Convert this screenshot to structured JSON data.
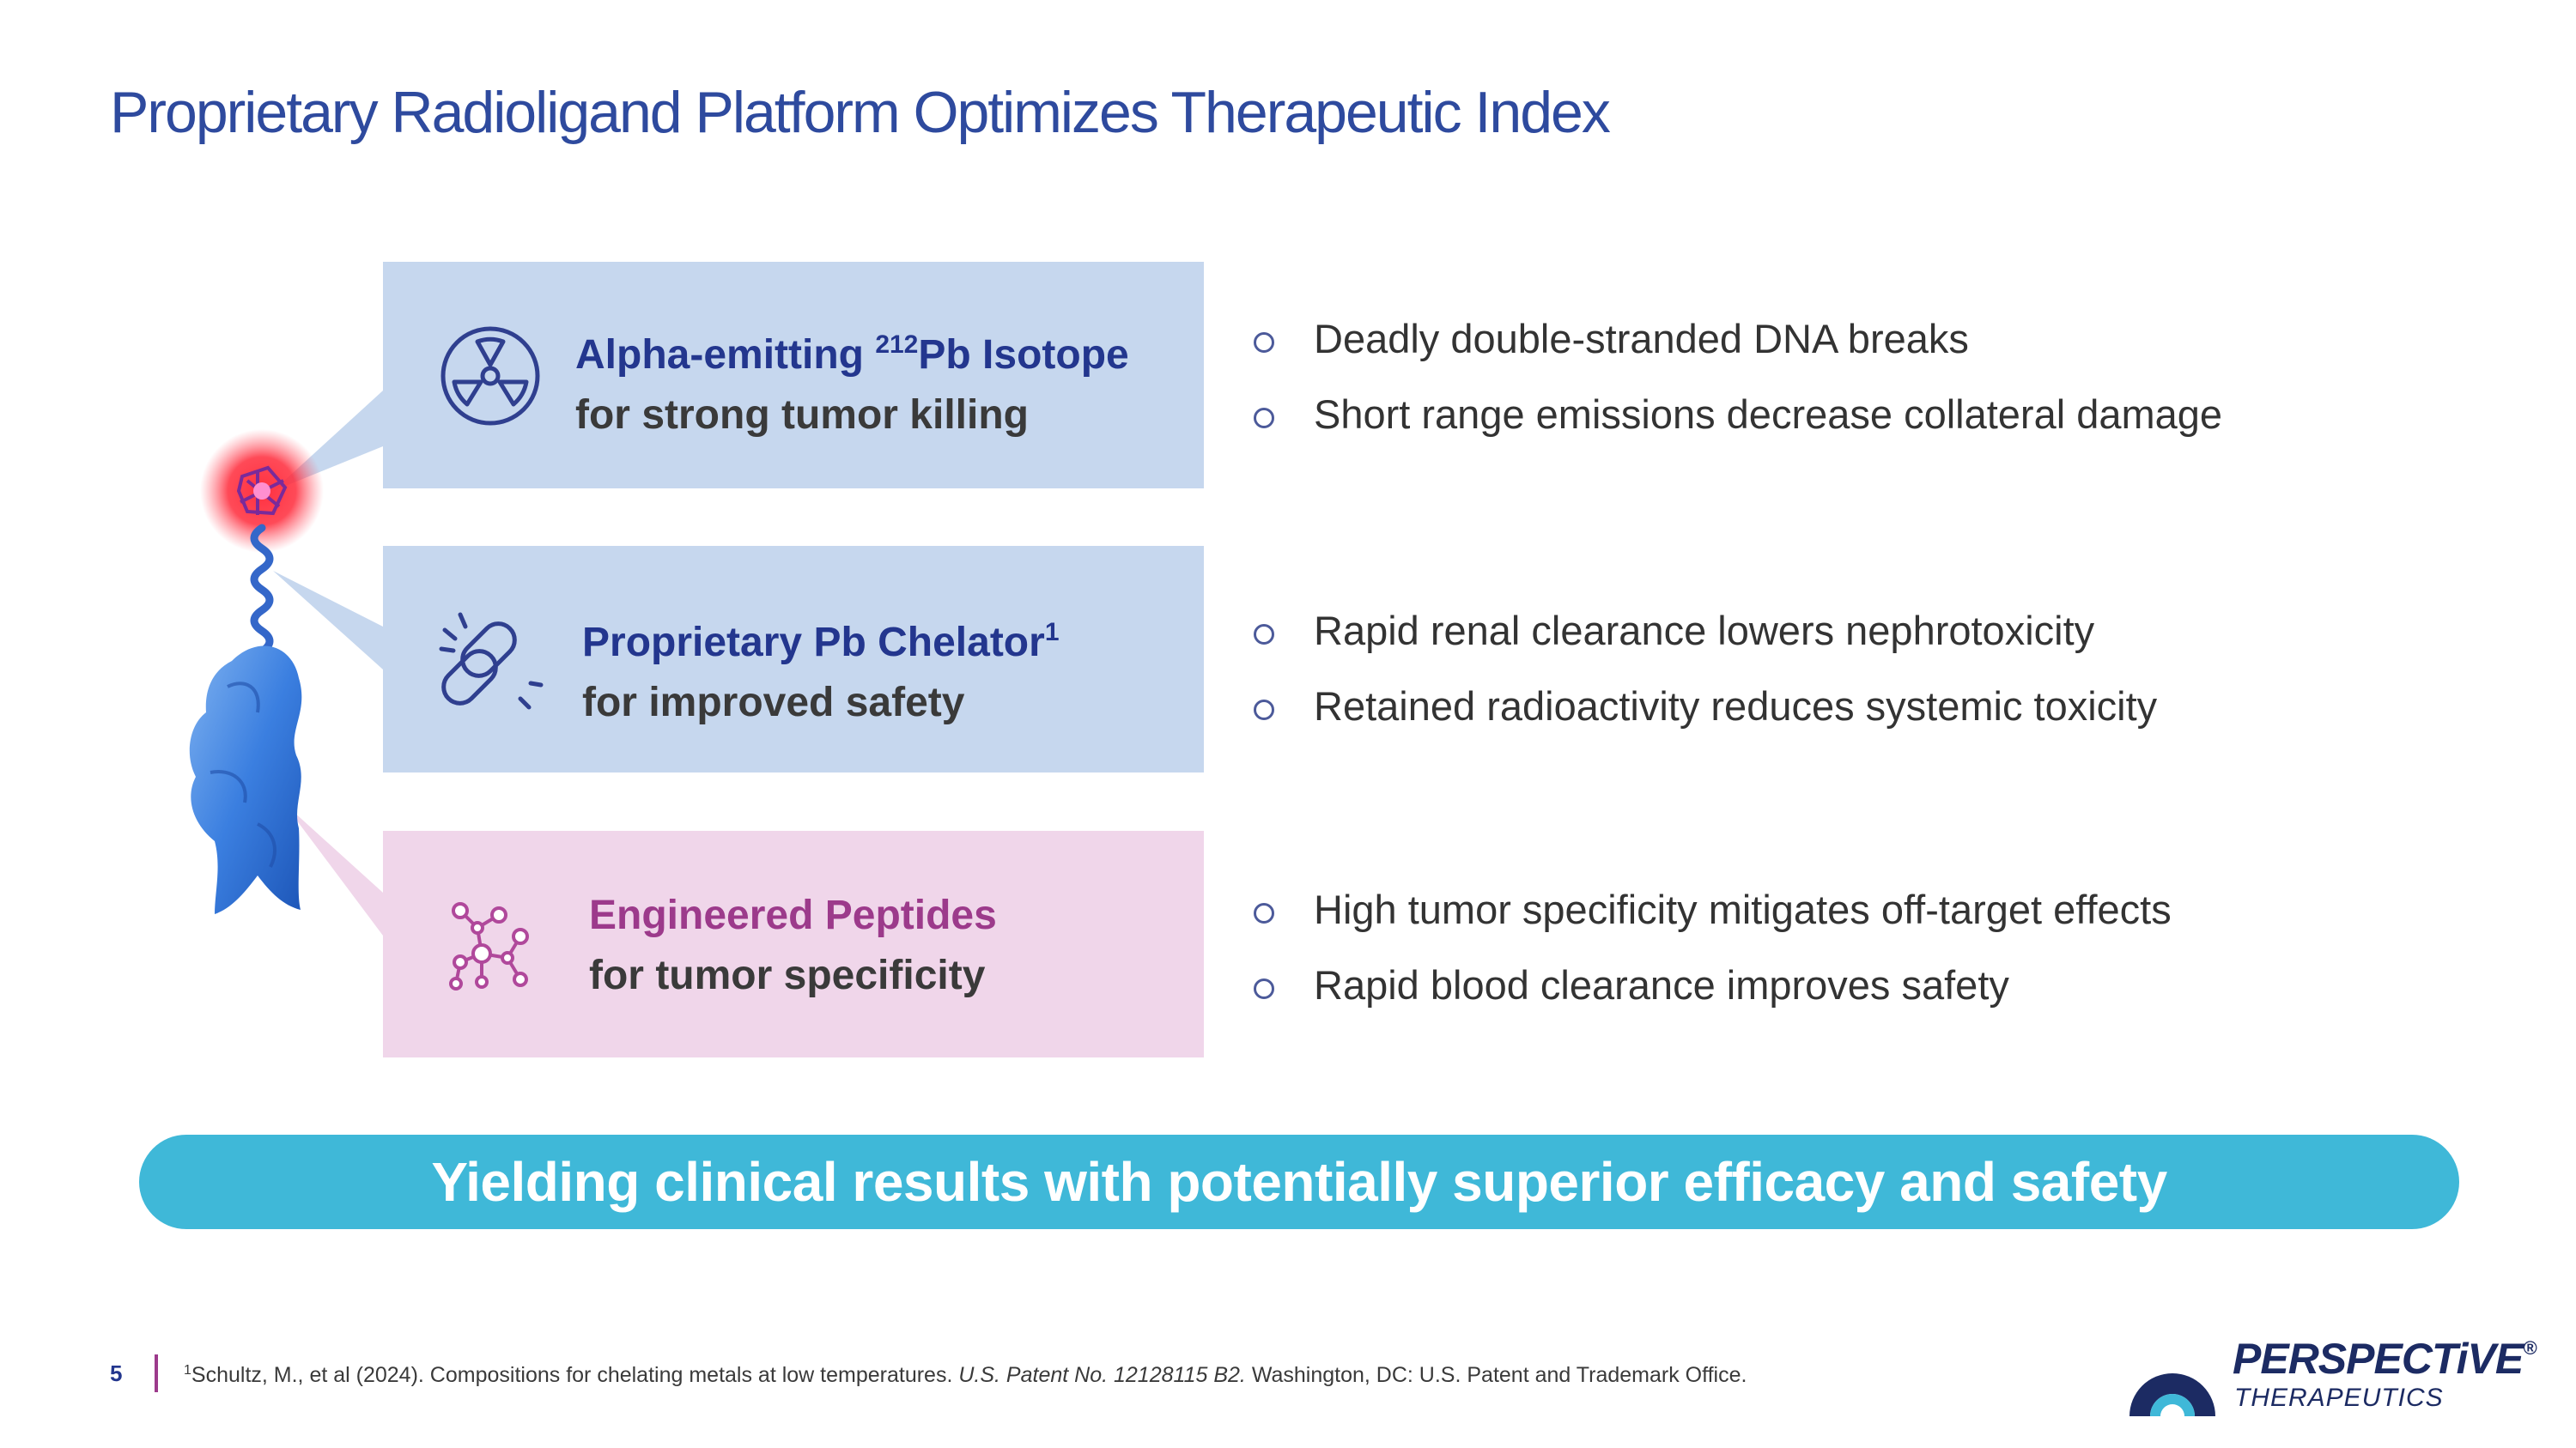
{
  "title": "Proprietary Radioligand Platform Optimizes Therapeutic Index",
  "features": [
    {
      "heading_pre": "Alpha-emitting ",
      "heading_sup": "212",
      "heading_post": "Pb Isotope",
      "subline": "for strong tumor killing",
      "icon": "radiation-icon",
      "bullets": [
        "Deadly double-stranded DNA breaks",
        "Short range emissions decrease collateral damage"
      ]
    },
    {
      "heading_pre": "Proprietary Pb Chelator",
      "heading_sup": "1",
      "heading_post": "",
      "subline": "for improved safety",
      "icon": "chain-link-icon",
      "bullets": [
        "Rapid renal clearance lowers nephrotoxicity",
        "Retained radioactivity reduces systemic toxicity"
      ]
    },
    {
      "heading_pre": "Engineered Peptides",
      "heading_sup": "",
      "heading_post": "",
      "subline": "for tumor specificity",
      "icon": "molecule-icon",
      "bullets": [
        "High tumor specificity mitigates off-target effects",
        "Rapid blood clearance improves safety"
      ]
    }
  ],
  "banner": "Yielding clinical results with potentially superior efficacy and safety",
  "footer": {
    "page_number": "5",
    "footnote_sup": "1",
    "footnote_text": "Schultz, M., et al (2024). Compositions for chelating metals at low temperatures.",
    "footnote_italic": "U.S. Patent No. 12128115 B2.",
    "footnote_tail": "Washington, DC: U.S. Patent and Trademark Office."
  },
  "logo": {
    "name": "PERSPECTiVE",
    "mark": "®",
    "subtitle": "THERAPEUTICS"
  },
  "colors": {
    "title": "#2e4a9e",
    "box_blue": "#c6d7ee",
    "box_pink": "#f0d6ea",
    "heading_blue": "#23368e",
    "heading_pink": "#9c3a8b",
    "banner": "#3fb8d8"
  }
}
